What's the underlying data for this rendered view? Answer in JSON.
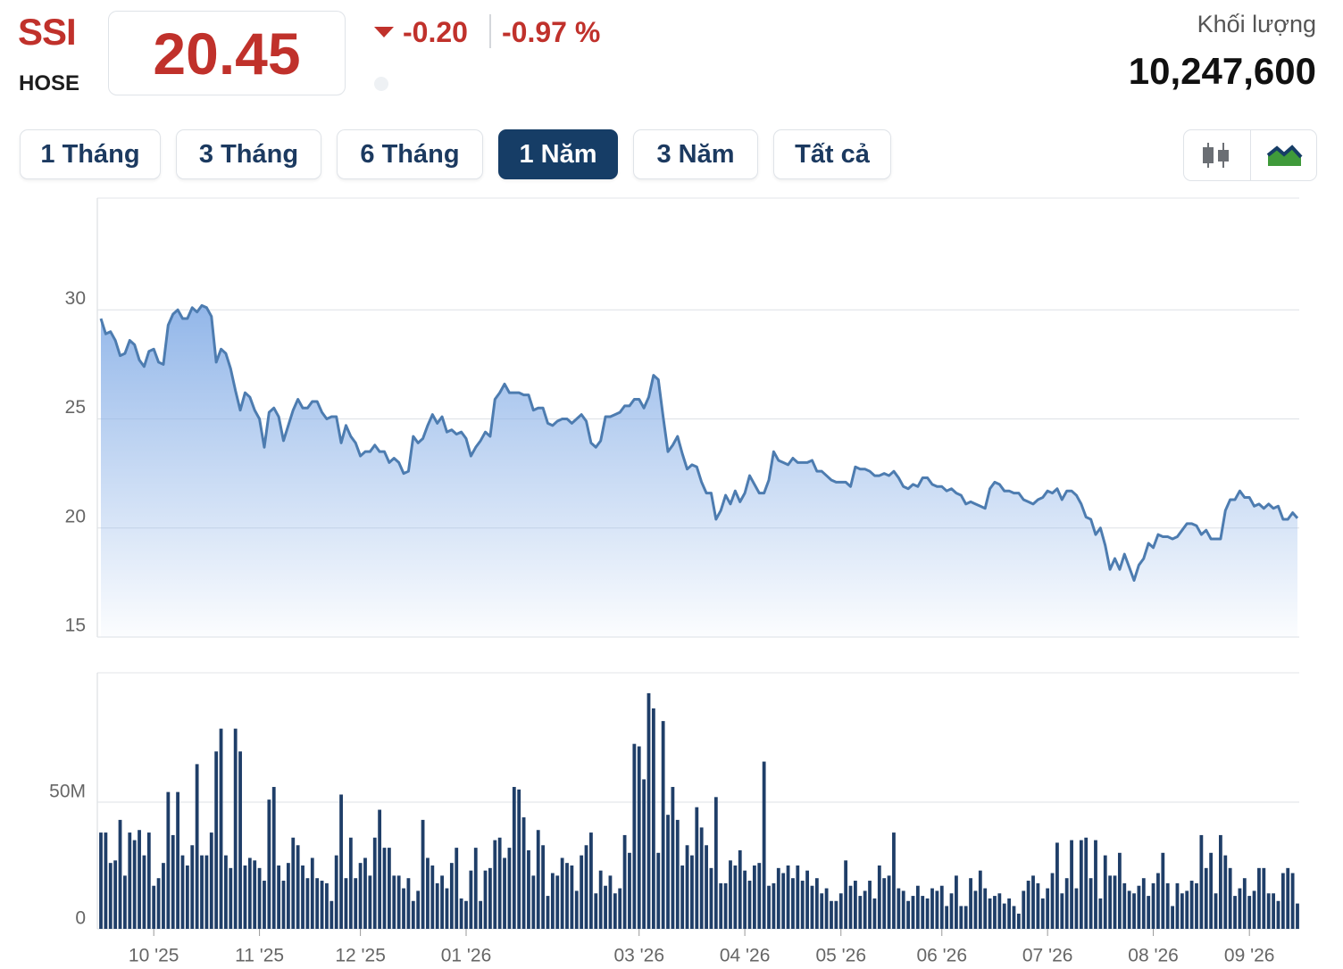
{
  "header": {
    "symbol": "SSI",
    "exchange": "HOSE",
    "price": "20.45",
    "change": "-0.20",
    "change_percent": "-0.97 %",
    "volume_label": "Khối lượng",
    "volume": "10,247,600"
  },
  "range_buttons": [
    "1 Tháng",
    "3 Tháng",
    "6 Tháng",
    "1 Năm",
    "3 Năm",
    "Tất cả"
  ],
  "active_range": 3,
  "chart_data": [
    {
      "type": "area",
      "color": "#4d7cb0",
      "fill_color": "#8db3e8",
      "ylim": [
        15,
        35
      ],
      "yticks": [
        15,
        20,
        25,
        30
      ],
      "grid": true,
      "values": [
        29.6,
        28.9,
        29.0,
        28.6,
        27.9,
        28.0,
        28.6,
        28.4,
        27.7,
        27.4,
        28.1,
        28.2,
        27.6,
        27.5,
        29.3,
        29.8,
        30.0,
        29.6,
        29.6,
        30.1,
        29.9,
        30.2,
        30.1,
        29.7,
        27.6,
        28.2,
        28.0,
        27.3,
        26.3,
        25.4,
        26.2,
        26.0,
        25.4,
        25.0,
        23.7,
        25.3,
        25.5,
        25.1,
        24.0,
        24.7,
        25.4,
        25.9,
        25.5,
        25.5,
        25.8,
        25.8,
        25.3,
        25.0,
        25.1,
        25.1,
        23.9,
        24.7,
        24.2,
        23.9,
        23.3,
        23.5,
        23.5,
        23.8,
        23.5,
        23.5,
        23.0,
        23.2,
        23.0,
        22.5,
        22.6,
        24.2,
        23.9,
        24.1,
        24.7,
        25.2,
        24.8,
        25.1,
        24.4,
        24.5,
        24.3,
        24.4,
        24.1,
        23.3,
        23.7,
        24.0,
        24.4,
        24.2,
        25.9,
        26.2,
        26.6,
        26.2,
        26.2,
        26.2,
        26.1,
        26.1,
        25.4,
        25.5,
        25.5,
        24.8,
        24.7,
        24.9,
        25.0,
        25.0,
        24.8,
        25.0,
        25.2,
        24.9,
        23.9,
        23.7,
        24.0,
        25.1,
        25.1,
        25.2,
        25.3,
        25.6,
        25.6,
        25.9,
        25.9,
        25.5,
        26.0,
        27.0,
        26.8,
        25.1,
        23.5,
        23.8,
        24.2,
        23.4,
        22.7,
        22.9,
        22.8,
        22.1,
        21.6,
        21.6,
        20.4,
        20.8,
        21.5,
        21.1,
        21.7,
        21.2,
        21.6,
        22.4,
        22.0,
        21.6,
        21.6,
        22.2,
        23.5,
        23.1,
        23.0,
        22.9,
        23.2,
        23.0,
        23.0,
        23.0,
        23.1,
        22.6,
        22.6,
        22.4,
        22.2,
        22.1,
        22.1,
        22.1,
        21.9,
        22.8,
        22.7,
        22.7,
        22.6,
        22.4,
        22.4,
        22.5,
        22.4,
        22.6,
        22.3,
        21.9,
        21.8,
        22.0,
        21.9,
        22.3,
        22.3,
        22.0,
        21.9,
        21.9,
        21.7,
        21.8,
        21.6,
        21.5,
        21.1,
        21.2,
        21.1,
        21.0,
        20.9,
        21.8,
        22.1,
        22.0,
        21.7,
        21.7,
        21.6,
        21.6,
        21.3,
        21.2,
        21.1,
        21.3,
        21.4,
        21.7,
        21.6,
        21.8,
        21.3,
        21.7,
        21.7,
        21.5,
        21.1,
        20.5,
        20.4,
        19.7,
        20.0,
        19.2,
        18.1,
        18.6,
        18.1,
        18.8,
        18.2,
        17.6,
        18.3,
        18.6,
        19.3,
        19.1,
        19.7,
        19.6,
        19.6,
        19.5,
        19.6,
        19.9,
        20.2,
        20.2,
        20.1,
        19.7,
        19.9,
        19.5,
        19.5,
        19.5,
        20.8,
        21.3,
        21.3,
        21.7,
        21.4,
        21.4,
        21.0,
        21.1,
        20.9,
        21.1,
        20.9,
        21.0,
        20.4,
        20.4,
        20.7,
        20.45
      ]
    },
    {
      "type": "bar",
      "color": "#1f3e68",
      "ylim": [
        0,
        100000000
      ],
      "yticks": [
        0,
        {
          "value": 50000000,
          "label": "50M"
        }
      ],
      "grid": true,
      "categories": [
        null,
        null,
        null,
        null,
        null,
        null,
        null,
        null,
        null,
        null,
        null,
        "10 '25",
        null,
        null,
        null,
        null,
        null,
        null,
        null,
        null,
        null,
        null,
        null,
        null,
        null,
        null,
        null,
        null,
        null,
        null,
        null,
        null,
        null,
        "11 '25",
        null,
        null,
        null,
        null,
        null,
        null,
        null,
        null,
        null,
        null,
        null,
        null,
        null,
        null,
        null,
        null,
        null,
        null,
        null,
        null,
        "12 '25",
        null,
        null,
        null,
        null,
        null,
        null,
        null,
        null,
        null,
        null,
        null,
        null,
        null,
        null,
        null,
        null,
        null,
        null,
        null,
        null,
        null,
        "01 '26",
        null,
        null,
        null,
        null,
        null,
        null,
        null,
        null,
        null,
        null,
        null,
        null,
        null,
        null,
        null,
        null,
        null,
        null,
        null,
        null,
        null,
        null,
        null,
        null,
        null,
        null,
        null,
        null,
        null,
        null,
        null,
        null,
        null,
        null,
        null,
        "03 '26",
        null,
        null,
        null,
        null,
        null,
        null,
        null,
        null,
        null,
        null,
        null,
        null,
        null,
        null,
        null,
        null,
        null,
        null,
        null,
        null,
        null,
        "04 '26",
        null,
        null,
        null,
        null,
        null,
        null,
        null,
        null,
        null,
        null,
        null,
        null,
        null,
        null,
        null,
        null,
        null,
        null,
        null,
        "05 '26",
        null,
        null,
        null,
        null,
        null,
        null,
        null,
        null,
        null,
        null,
        null,
        null,
        null,
        null,
        null,
        null,
        null,
        null,
        null,
        null,
        "06 '26",
        null,
        null,
        null,
        null,
        null,
        null,
        null,
        null,
        null,
        null,
        null,
        null,
        null,
        null,
        null,
        null,
        null,
        null,
        null,
        null,
        null,
        "07 '26",
        null,
        null,
        null,
        null,
        null,
        null,
        null,
        null,
        null,
        null,
        null,
        null,
        null,
        null,
        null,
        null,
        null,
        null,
        null,
        null,
        null,
        "08 '26",
        null,
        null,
        null,
        null,
        null,
        null,
        null,
        null,
        null,
        null,
        null,
        null,
        null,
        null,
        null,
        null,
        null,
        null,
        null,
        "09 '26",
        null,
        null,
        null,
        null,
        null,
        null,
        null,
        null,
        null,
        null
      ],
      "values": [
        38000000,
        38000000,
        26000000,
        27000000,
        43000000,
        21000000,
        38000000,
        35000000,
        39000000,
        29000000,
        38000000,
        17000000,
        20000000,
        26000000,
        54000000,
        37000000,
        54000000,
        29000000,
        25000000,
        33000000,
        65000000,
        29000000,
        29000000,
        38000000,
        70000000,
        79000000,
        29000000,
        24000000,
        79000000,
        70000000,
        25000000,
        28000000,
        27000000,
        24000000,
        19000000,
        51000000,
        56000000,
        25000000,
        19000000,
        26000000,
        36000000,
        33000000,
        25000000,
        20000000,
        28000000,
        20000000,
        19000000,
        18000000,
        11000000,
        29000000,
        53000000,
        20000000,
        36000000,
        20000000,
        26000000,
        28000000,
        21000000,
        36000000,
        47000000,
        32000000,
        32000000,
        21000000,
        21000000,
        16000000,
        20000000,
        11000000,
        15000000,
        43000000,
        28000000,
        25000000,
        18000000,
        21000000,
        16000000,
        26000000,
        32000000,
        12000000,
        11000000,
        23000000,
        32000000,
        11000000,
        23000000,
        24000000,
        35000000,
        36000000,
        28000000,
        32000000,
        56000000,
        55000000,
        44000000,
        31000000,
        21000000,
        39000000,
        33000000,
        13000000,
        22000000,
        21000000,
        28000000,
        26000000,
        25000000,
        15000000,
        29000000,
        33000000,
        38000000,
        14000000,
        23000000,
        17000000,
        21000000,
        14000000,
        16000000,
        37000000,
        30000000,
        73000000,
        72000000,
        59000000,
        93000000,
        87000000,
        30000000,
        82000000,
        45000000,
        56000000,
        43000000,
        25000000,
        33000000,
        29000000,
        48000000,
        40000000,
        33000000,
        24000000,
        52000000,
        18000000,
        18000000,
        27000000,
        25000000,
        31000000,
        23000000,
        19000000,
        25000000,
        26000000,
        66000000,
        17000000,
        18000000,
        24000000,
        22000000,
        25000000,
        20000000,
        25000000,
        19000000,
        23000000,
        17000000,
        20000000,
        14000000,
        16000000,
        11000000,
        11000000,
        14000000,
        27000000,
        17000000,
        19000000,
        13000000,
        15000000,
        19000000,
        12000000,
        25000000,
        20000000,
        21000000,
        38000000,
        16000000,
        15000000,
        11000000,
        13000000,
        17000000,
        13000000,
        12000000,
        16000000,
        15000000,
        17000000,
        9000000,
        14000000,
        21000000,
        9000000,
        9000000,
        20000000,
        15000000,
        23000000,
        16000000,
        12000000,
        13000000,
        14000000,
        10000000,
        12000000,
        9000000,
        6000000,
        15000000,
        19000000,
        21000000,
        18000000,
        12000000,
        16000000,
        22000000,
        34000000,
        14000000,
        20000000,
        35000000,
        16000000,
        35000000,
        36000000,
        20000000,
        35000000,
        12000000,
        29000000,
        21000000,
        21000000,
        30000000,
        18000000,
        15000000,
        14000000,
        17000000,
        20000000,
        13000000,
        18000000,
        22000000,
        30000000,
        18000000,
        9000000,
        18000000,
        14000000,
        15000000,
        19000000,
        18000000,
        37000000,
        24000000,
        30000000,
        14000000,
        37000000,
        29000000,
        24000000,
        13000000,
        16000000,
        20000000,
        13000000,
        15000000,
        24000000,
        24000000,
        14000000,
        14000000,
        11000000,
        22000000,
        24000000,
        22000000,
        10000000
      ]
    }
  ]
}
